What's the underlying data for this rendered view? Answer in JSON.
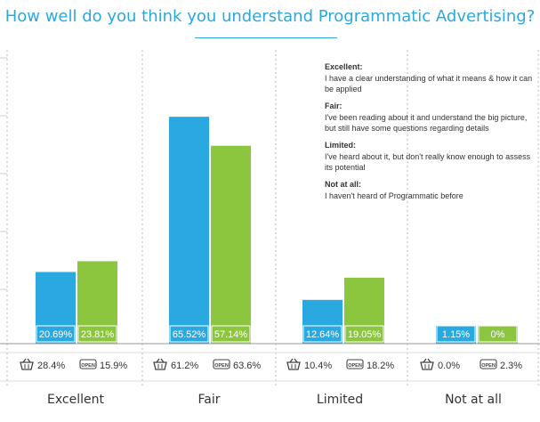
{
  "title": "How well do you think you understand Programmatic Advertising?",
  "legend": [
    {
      "term": "Excellent:",
      "desc": "I have a clear understanding of what it means & how it can be applied"
    },
    {
      "term": "Fair:",
      "desc": "I've been reading about it and understand the big picture, but still have some questions regarding details"
    },
    {
      "term": "Limited:",
      "desc": "I've heard about it, but don't really know enough to assess its potential"
    },
    {
      "term": "Not at all:",
      "desc": "I haven't heard of Programmatic before"
    }
  ],
  "badges": {
    "basket": "basket-icon",
    "open": "OPEN"
  },
  "colors": {
    "blue": "#29a9e0",
    "green": "#8cc63f",
    "title": "#29a9e0",
    "grid": "#cccccc"
  },
  "chart_data": {
    "type": "bar",
    "title": "How well do you think you understand Programmatic Advertising?",
    "categories": [
      "Excellent",
      "Fair",
      "Limited",
      "Not at all"
    ],
    "series": [
      {
        "name": "blue",
        "values": [
          20.69,
          65.52,
          12.64,
          1.15
        ],
        "labels": [
          "20.69%",
          "65.52%",
          "12.64%",
          "1.15%"
        ]
      },
      {
        "name": "green",
        "values": [
          23.81,
          57.14,
          19.05,
          0
        ],
        "labels": [
          "23.81%",
          "57.14%",
          "19.05%",
          "0%"
        ]
      }
    ],
    "secondary": {
      "basket": [
        "28.4%",
        "61.2%",
        "10.4%",
        "0.0%"
      ],
      "open": [
        "15.9%",
        "63.6%",
        "18.2%",
        "2.3%"
      ]
    },
    "ylim": [
      0,
      80
    ],
    "grid": true
  }
}
